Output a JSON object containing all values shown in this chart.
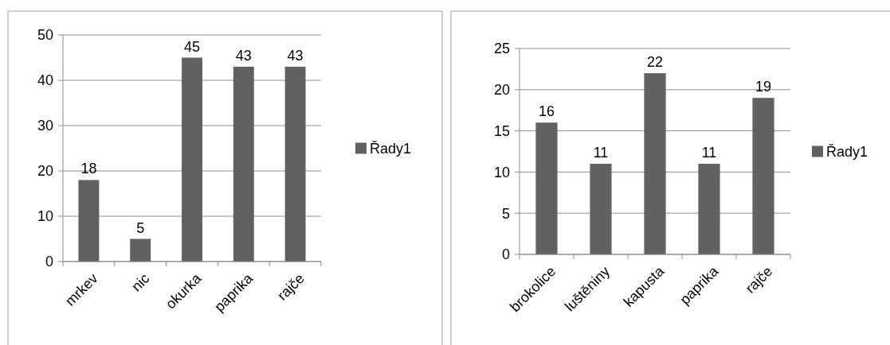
{
  "chart_data": [
    {
      "type": "bar",
      "categories": [
        "mrkev",
        "nic",
        "okurka",
        "paprika",
        "rajče"
      ],
      "series": [
        {
          "name": "Řady1",
          "color": "#616161",
          "values": [
            18,
            5,
            45,
            43,
            43
          ]
        }
      ],
      "ylim": [
        0,
        50
      ],
      "yticks": [
        0,
        10,
        20,
        30,
        40,
        50
      ],
      "grid": "y",
      "legend": "right",
      "data_labels": true
    },
    {
      "type": "bar",
      "categories": [
        "brokolice",
        "luštěniny",
        "kapusta",
        "paprika",
        "rajče"
      ],
      "series": [
        {
          "name": "Řady1",
          "color": "#616161",
          "values": [
            16,
            11,
            22,
            11,
            19
          ]
        }
      ],
      "ylim": [
        0,
        25
      ],
      "yticks": [
        0,
        5,
        10,
        15,
        20,
        25
      ],
      "grid": "y",
      "legend": "right",
      "data_labels": true
    }
  ]
}
